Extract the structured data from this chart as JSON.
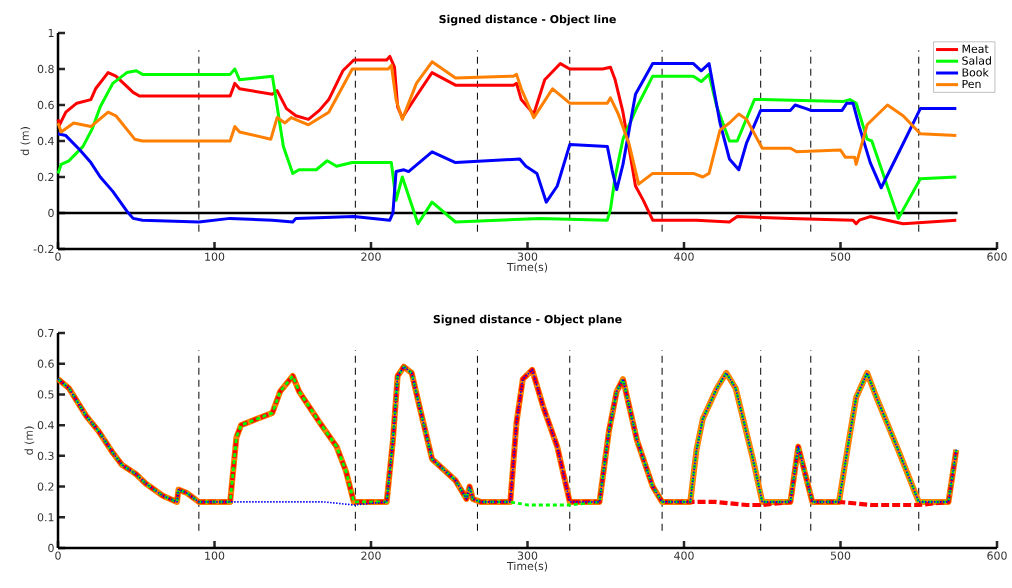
{
  "chart_data": [
    {
      "type": "line",
      "title": "Signed distance - Object line",
      "xlabel": "Time(s)",
      "ylabel": "d (m)",
      "xlim": [
        0,
        600
      ],
      "ylim": [
        -0.2,
        1
      ],
      "xticks": [
        0,
        100,
        200,
        300,
        400,
        500,
        600
      ],
      "yticks": [
        -0.2,
        0,
        0.2,
        0.4,
        0.6,
        0.8,
        1
      ],
      "legend": "top right",
      "ref_lines": [
        {
          "axis": "y",
          "value": 0,
          "color": "#000000",
          "line_style": "solid"
        },
        {
          "axis": "x",
          "value": 90,
          "color": "#000000",
          "line_style": "dashed"
        },
        {
          "axis": "x",
          "value": 190,
          "color": "#000000",
          "line_style": "dashed"
        },
        {
          "axis": "x",
          "value": 268,
          "color": "#000000",
          "line_style": "dashed"
        },
        {
          "axis": "x",
          "value": 327,
          "color": "#000000",
          "line_style": "dashed"
        },
        {
          "axis": "x",
          "value": 386,
          "color": "#000000",
          "line_style": "dashed"
        },
        {
          "axis": "x",
          "value": 449,
          "color": "#000000",
          "line_style": "dashed"
        },
        {
          "axis": "x",
          "value": 481,
          "color": "#000000",
          "line_style": "dashed"
        },
        {
          "axis": "x",
          "value": 550,
          "color": "#000000",
          "line_style": "dashed"
        }
      ],
      "series": [
        {
          "name": "Meat",
          "color": "#ff0000",
          "x": [
            0,
            1,
            5,
            12,
            21,
            24,
            32,
            37,
            48,
            52,
            110,
            113,
            116,
            137,
            140,
            146,
            152,
            160,
            167,
            173,
            182,
            189,
            210,
            212,
            215,
            217,
            220,
            229,
            239,
            254,
            291,
            293,
            296,
            304,
            311,
            321,
            327,
            348,
            353,
            356,
            361,
            369,
            374,
            380,
            408,
            429,
            434,
            468,
            508,
            510,
            512,
            519,
            540,
            574
          ],
          "values": [
            0.52,
            0.49,
            0.56,
            0.61,
            0.63,
            0.69,
            0.78,
            0.76,
            0.67,
            0.65,
            0.65,
            0.72,
            0.69,
            0.66,
            0.68,
            0.58,
            0.54,
            0.52,
            0.57,
            0.63,
            0.79,
            0.85,
            0.85,
            0.87,
            0.81,
            0.59,
            0.53,
            0.65,
            0.78,
            0.71,
            0.71,
            0.72,
            0.63,
            0.55,
            0.74,
            0.83,
            0.8,
            0.8,
            0.81,
            0.74,
            0.56,
            0.15,
            0.07,
            -0.04,
            -0.04,
            -0.05,
            -0.02,
            -0.03,
            -0.04,
            -0.06,
            -0.04,
            -0.02,
            -0.06,
            -0.04
          ]
        },
        {
          "name": "Salad",
          "color": "#00ff00",
          "x": [
            0,
            2,
            7,
            16,
            22,
            27,
            35,
            44,
            50,
            54,
            110,
            113,
            116,
            137,
            144,
            150,
            154,
            165,
            172,
            178,
            188,
            211,
            213,
            216,
            220,
            230,
            239,
            254,
            308,
            351,
            353,
            356,
            361,
            370,
            380,
            406,
            411,
            416,
            421,
            429,
            434,
            445,
            450,
            502,
            506,
            510,
            517,
            520,
            537,
            551,
            574
          ],
          "values": [
            0.22,
            0.27,
            0.29,
            0.37,
            0.47,
            0.59,
            0.72,
            0.78,
            0.79,
            0.77,
            0.77,
            0.8,
            0.74,
            0.76,
            0.37,
            0.22,
            0.24,
            0.24,
            0.29,
            0.26,
            0.28,
            0.28,
            0.28,
            0.07,
            0.2,
            -0.06,
            0.06,
            -0.05,
            -0.03,
            -0.04,
            0.02,
            0.2,
            0.41,
            0.59,
            0.76,
            0.76,
            0.73,
            0.77,
            0.59,
            0.4,
            0.4,
            0.63,
            0.63,
            0.62,
            0.63,
            0.61,
            0.41,
            0.4,
            -0.03,
            0.19,
            0.2
          ]
        },
        {
          "name": "Book",
          "color": "#0000ff",
          "x": [
            0,
            5,
            14,
            21,
            27,
            35,
            44,
            48,
            54,
            90,
            110,
            137,
            150,
            152,
            189,
            212,
            214,
            216,
            221,
            224,
            239,
            254,
            295,
            299,
            306,
            312,
            319,
            327,
            351,
            354,
            357,
            361,
            369,
            380,
            406,
            411,
            416,
            423,
            429,
            435,
            440,
            449,
            468,
            471,
            478,
            481,
            501,
            504,
            508,
            512,
            519,
            526,
            538,
            551,
            574
          ],
          "values": [
            0.44,
            0.43,
            0.35,
            0.28,
            0.2,
            0.12,
            0.01,
            -0.03,
            -0.04,
            -0.05,
            -0.03,
            -0.04,
            -0.05,
            -0.03,
            -0.02,
            -0.04,
            0.0,
            0.23,
            0.24,
            0.23,
            0.34,
            0.28,
            0.3,
            0.26,
            0.22,
            0.06,
            0.15,
            0.38,
            0.37,
            0.24,
            0.13,
            0.27,
            0.66,
            0.83,
            0.83,
            0.79,
            0.83,
            0.5,
            0.3,
            0.24,
            0.39,
            0.57,
            0.57,
            0.6,
            0.58,
            0.57,
            0.57,
            0.61,
            0.61,
            0.48,
            0.28,
            0.14,
            0.35,
            0.58,
            0.58
          ]
        },
        {
          "name": "Pen",
          "color": "#ff8000",
          "x": [
            0,
            2,
            10,
            21,
            32,
            37,
            49,
            54,
            110,
            113,
            116,
            136,
            140,
            145,
            149,
            160,
            173,
            188,
            211,
            213,
            216,
            220,
            229,
            239,
            254,
            291,
            293,
            296,
            304,
            316,
            327,
            351,
            353,
            358,
            365,
            371,
            380,
            406,
            412,
            416,
            423,
            429,
            435,
            440,
            450,
            468,
            472,
            500,
            503,
            509,
            510,
            517,
            530,
            540,
            551,
            574
          ],
          "values": [
            0.5,
            0.45,
            0.5,
            0.48,
            0.56,
            0.54,
            0.41,
            0.4,
            0.4,
            0.48,
            0.45,
            0.41,
            0.53,
            0.5,
            0.53,
            0.49,
            0.56,
            0.8,
            0.8,
            0.82,
            0.63,
            0.52,
            0.72,
            0.84,
            0.75,
            0.76,
            0.77,
            0.69,
            0.53,
            0.69,
            0.61,
            0.61,
            0.64,
            0.55,
            0.38,
            0.16,
            0.22,
            0.22,
            0.2,
            0.22,
            0.46,
            0.5,
            0.55,
            0.52,
            0.36,
            0.36,
            0.34,
            0.35,
            0.31,
            0.31,
            0.27,
            0.49,
            0.6,
            0.54,
            0.44,
            0.43
          ]
        }
      ]
    },
    {
      "type": "line",
      "title": "Signed distance - Object plane",
      "xlabel": "Time(s)",
      "ylabel": "d (m)",
      "xlim": [
        0,
        600
      ],
      "ylim": [
        0,
        0.7
      ],
      "xticks": [
        0,
        100,
        200,
        300,
        400,
        500,
        600
      ],
      "yticks": [
        0,
        0.1,
        0.2,
        0.3,
        0.4,
        0.5,
        0.6,
        0.7
      ],
      "ref_lines": [
        {
          "axis": "x",
          "value": 90,
          "color": "#000000",
          "line_style": "dashed"
        },
        {
          "axis": "x",
          "value": 190,
          "color": "#000000",
          "line_style": "dashed"
        },
        {
          "axis": "x",
          "value": 268,
          "color": "#000000",
          "line_style": "dashed"
        },
        {
          "axis": "x",
          "value": 327,
          "color": "#000000",
          "line_style": "dashed"
        },
        {
          "axis": "x",
          "value": 386,
          "color": "#000000",
          "line_style": "dashed"
        },
        {
          "axis": "x",
          "value": 449,
          "color": "#000000",
          "line_style": "dashed"
        },
        {
          "axis": "x",
          "value": 481,
          "color": "#000000",
          "line_style": "dashed"
        },
        {
          "axis": "x",
          "value": 550,
          "color": "#000000",
          "line_style": "dashed"
        }
      ],
      "series": [
        {
          "color": "#ff0000",
          "line_style": "dashed",
          "x": [
            0,
            7,
            18,
            26,
            35,
            41,
            50,
            56,
            67,
            76,
            77,
            82,
            90,
            110,
            114,
            117,
            137,
            142,
            150,
            154,
            167,
            178,
            184,
            189,
            210,
            214,
            217,
            221,
            226,
            231,
            239,
            254,
            261,
            263,
            265,
            270,
            289,
            293,
            297,
            303,
            310,
            319,
            327,
            346,
            352,
            357,
            361,
            370,
            380,
            386,
            404,
            420,
            440,
            450,
            468,
            473,
            482,
            499,
            520,
            540,
            550,
            569,
            574
          ],
          "values": [
            0.55,
            0.52,
            0.43,
            0.38,
            0.31,
            0.27,
            0.24,
            0.21,
            0.17,
            0.15,
            0.19,
            0.18,
            0.15,
            0.15,
            0.36,
            0.4,
            0.44,
            0.51,
            0.56,
            0.51,
            0.41,
            0.33,
            0.25,
            0.15,
            0.15,
            0.35,
            0.56,
            0.59,
            0.57,
            0.46,
            0.29,
            0.22,
            0.16,
            0.2,
            0.16,
            0.15,
            0.15,
            0.41,
            0.55,
            0.58,
            0.46,
            0.33,
            0.15,
            0.15,
            0.38,
            0.51,
            0.55,
            0.35,
            0.2,
            0.15,
            0.15,
            0.15,
            0.14,
            0.14,
            0.15,
            0.33,
            0.15,
            0.15,
            0.14,
            0.14,
            0.14,
            0.15,
            0.32
          ]
        },
        {
          "color": "#00ff00",
          "line_style": "dashed",
          "x": [
            0,
            7,
            18,
            26,
            35,
            41,
            50,
            56,
            67,
            76,
            77,
            82,
            90,
            110,
            114,
            117,
            137,
            142,
            150,
            154,
            167,
            178,
            184,
            189,
            210,
            214,
            217,
            221,
            226,
            231,
            239,
            254,
            261,
            263,
            265,
            270,
            289,
            300,
            310,
            327,
            346,
            352,
            357,
            361,
            370,
            380,
            386,
            404,
            408,
            412,
            421,
            427,
            433,
            444,
            450,
            468,
            473,
            482,
            499,
            506,
            510,
            517,
            523,
            536,
            550,
            569,
            574
          ],
          "values": [
            0.55,
            0.52,
            0.43,
            0.38,
            0.31,
            0.27,
            0.24,
            0.21,
            0.17,
            0.15,
            0.19,
            0.18,
            0.15,
            0.15,
            0.36,
            0.4,
            0.44,
            0.51,
            0.56,
            0.51,
            0.41,
            0.33,
            0.25,
            0.15,
            0.15,
            0.35,
            0.56,
            0.59,
            0.57,
            0.46,
            0.29,
            0.22,
            0.16,
            0.2,
            0.16,
            0.15,
            0.15,
            0.14,
            0.14,
            0.14,
            0.15,
            0.38,
            0.51,
            0.55,
            0.35,
            0.2,
            0.15,
            0.15,
            0.32,
            0.42,
            0.52,
            0.57,
            0.52,
            0.29,
            0.15,
            0.15,
            0.33,
            0.15,
            0.15,
            0.37,
            0.49,
            0.57,
            0.49,
            0.33,
            0.15,
            0.15,
            0.32
          ]
        },
        {
          "color": "#0000ff",
          "line_style": "dotted",
          "x": [
            0,
            7,
            18,
            26,
            35,
            41,
            50,
            56,
            67,
            76,
            77,
            82,
            90,
            110,
            140,
            170,
            189,
            210,
            214,
            217,
            221,
            226,
            231,
            239,
            254,
            261,
            263,
            265,
            270,
            289,
            293,
            297,
            303,
            310,
            319,
            327,
            346,
            352,
            357,
            361,
            370,
            380,
            386,
            404,
            408,
            412,
            421,
            427,
            433,
            444,
            450,
            468,
            473,
            482,
            499,
            506,
            510,
            517,
            523,
            536,
            550,
            569,
            574
          ],
          "values": [
            0.55,
            0.52,
            0.43,
            0.38,
            0.31,
            0.27,
            0.24,
            0.21,
            0.17,
            0.15,
            0.19,
            0.18,
            0.15,
            0.15,
            0.15,
            0.15,
            0.14,
            0.15,
            0.35,
            0.56,
            0.59,
            0.57,
            0.46,
            0.29,
            0.22,
            0.16,
            0.2,
            0.16,
            0.15,
            0.15,
            0.41,
            0.55,
            0.58,
            0.46,
            0.33,
            0.15,
            0.15,
            0.38,
            0.51,
            0.55,
            0.35,
            0.2,
            0.15,
            0.15,
            0.32,
            0.42,
            0.52,
            0.57,
            0.52,
            0.29,
            0.15,
            0.15,
            0.33,
            0.15,
            0.15,
            0.37,
            0.49,
            0.57,
            0.49,
            0.33,
            0.15,
            0.15,
            0.32
          ]
        },
        {
          "color": "#ff8000",
          "line_style": "solid",
          "x": [
            0,
            7,
            18,
            26,
            35,
            41,
            50,
            56,
            67,
            76,
            77,
            82,
            90,
            110,
            114,
            117,
            137,
            142,
            150,
            154,
            167,
            178,
            184,
            189,
            210,
            214,
            217,
            221,
            226,
            231,
            239,
            254,
            261,
            263,
            265,
            270,
            289,
            293,
            297,
            303,
            310,
            319,
            327,
            346,
            352,
            357,
            361,
            370,
            380,
            386,
            404,
            408,
            412,
            421,
            427,
            433,
            444,
            450,
            468,
            473,
            482,
            499,
            506,
            510,
            517,
            523,
            536,
            550,
            569,
            574
          ],
          "values": [
            0.55,
            0.52,
            0.43,
            0.38,
            0.31,
            0.27,
            0.24,
            0.21,
            0.17,
            0.15,
            0.19,
            0.18,
            0.15,
            0.15,
            0.36,
            0.4,
            0.44,
            0.51,
            0.56,
            0.51,
            0.41,
            0.33,
            0.25,
            0.15,
            0.15,
            0.35,
            0.56,
            0.59,
            0.57,
            0.46,
            0.29,
            0.22,
            0.16,
            0.2,
            0.16,
            0.15,
            0.15,
            0.41,
            0.55,
            0.58,
            0.46,
            0.33,
            0.15,
            0.15,
            0.38,
            0.51,
            0.55,
            0.35,
            0.2,
            0.15,
            0.15,
            0.32,
            0.42,
            0.52,
            0.57,
            0.52,
            0.29,
            0.15,
            0.15,
            0.33,
            0.15,
            0.15,
            0.37,
            0.49,
            0.57,
            0.49,
            0.33,
            0.15,
            0.15,
            0.32
          ]
        }
      ]
    }
  ]
}
